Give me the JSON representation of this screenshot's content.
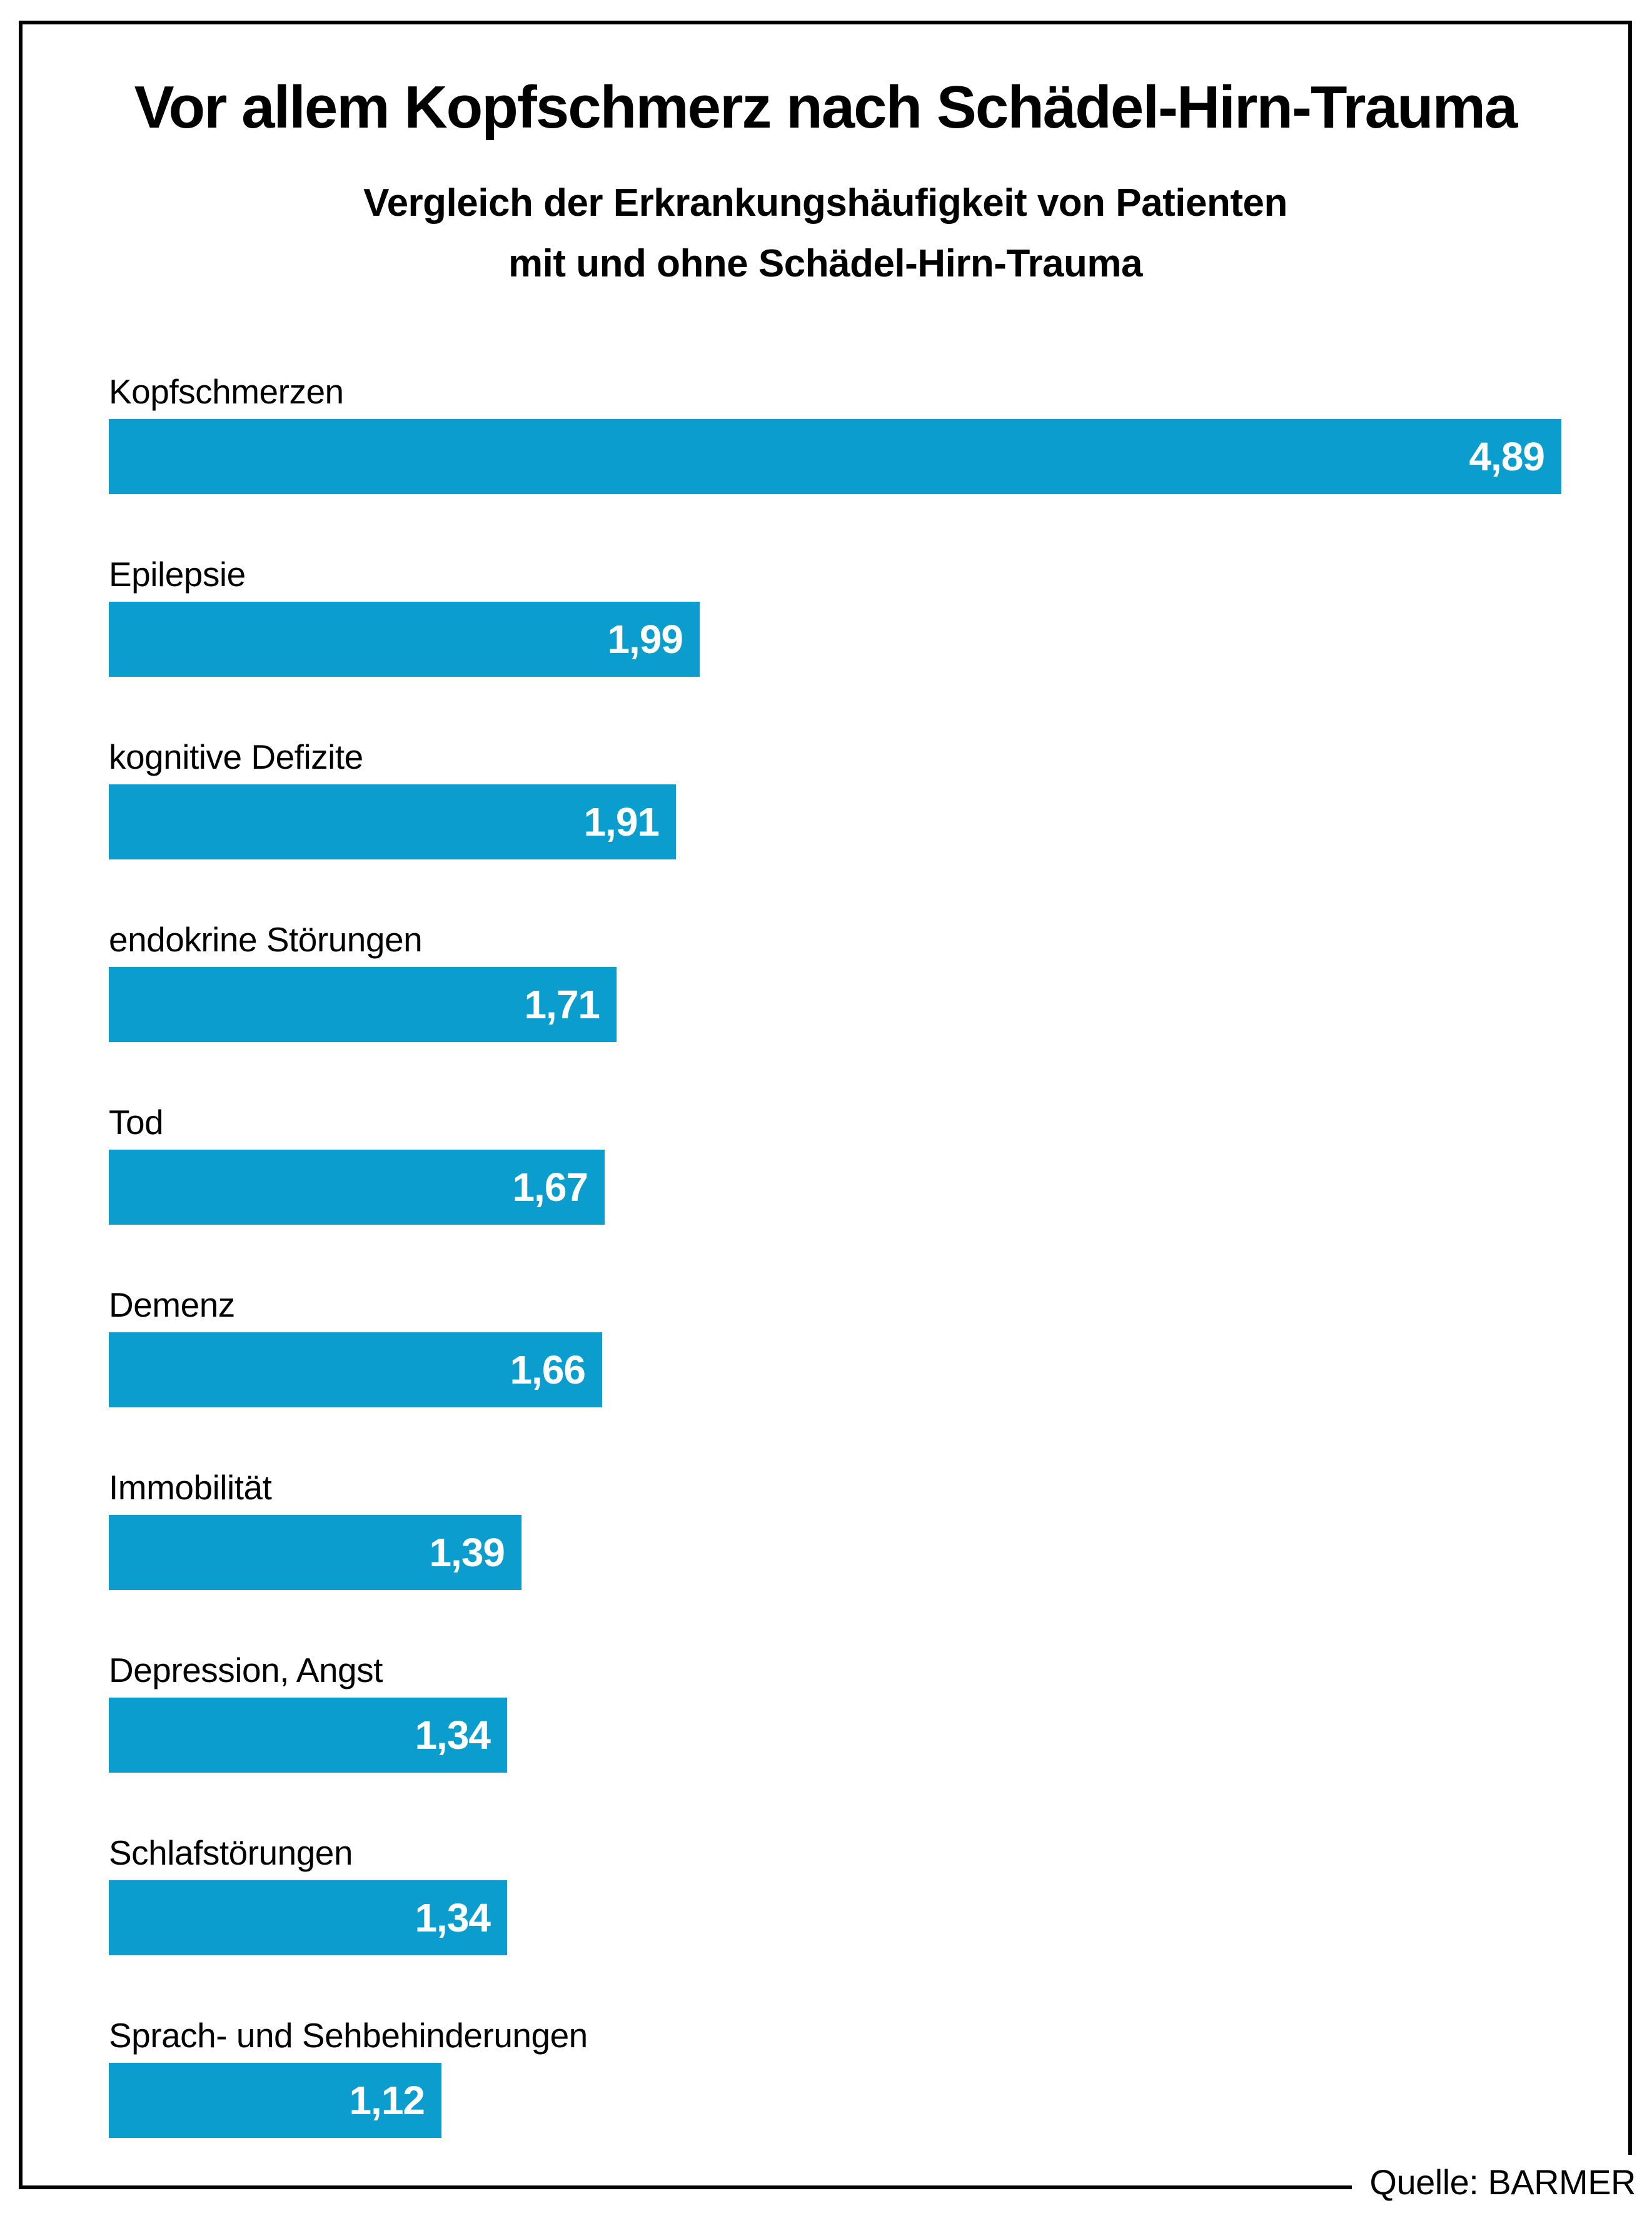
{
  "source": "Quelle: BARMER",
  "frame_color": "#000000",
  "chart_data": {
    "type": "bar",
    "orientation": "horizontal",
    "title": "Vor allem Kopfschmerz nach Schädel-Hirn-Trauma",
    "subtitle_line1": "Vergleich der Erkrankungshäufigkeit von Patienten",
    "subtitle_line2": "mit und ohne Schädel-Hirn-Trauma",
    "categories": [
      "Kopfschmerzen",
      "Epilepsie",
      "kognitive Defizite",
      "endokrine Störungen",
      "Tod",
      "Demenz",
      "Immobilität",
      "Depression, Angst",
      "Schlafstörungen",
      "Sprach- und Sehbehinderungen"
    ],
    "values": [
      4.89,
      1.99,
      1.91,
      1.71,
      1.67,
      1.66,
      1.39,
      1.34,
      1.34,
      1.12
    ],
    "display_values": [
      "4,89",
      "1,99",
      "1,91",
      "1,71",
      "1,67",
      "1,66",
      "1,39",
      "1,34",
      "1,34",
      "1,12"
    ],
    "bar_color": "#0a9dce",
    "value_text_color": "#ffffff",
    "label_text_color": "#000000",
    "xlim": [
      0,
      5.1
    ],
    "grid": false,
    "legend": false,
    "value_labels_position": "inside-right"
  }
}
